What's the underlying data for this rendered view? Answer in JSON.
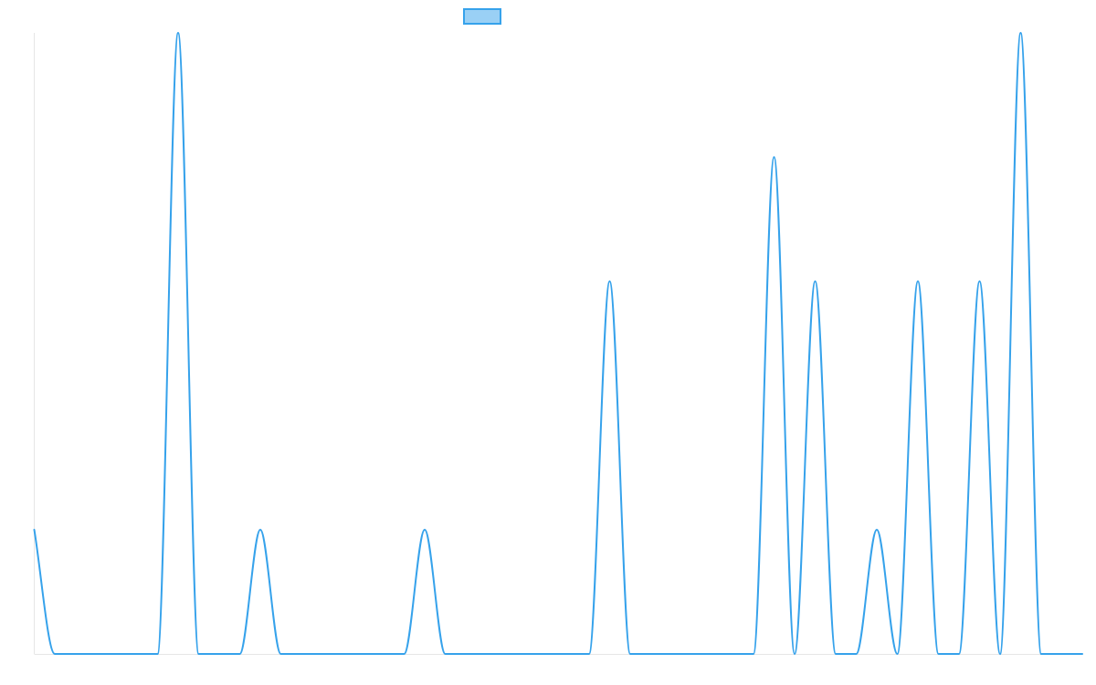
{
  "chart_data": {
    "type": "line",
    "title": "",
    "xlabel": "",
    "ylabel": "",
    "grid": false,
    "legend": "top-center",
    "x_range": [
      0,
      51
    ],
    "y_range": [
      0,
      5
    ],
    "series": [
      {
        "name": "",
        "color": "#36a2eb",
        "fill_color": "#9ad0f5",
        "values": [
          1,
          0,
          0,
          0,
          0,
          0,
          0,
          5,
          0,
          0,
          0,
          1,
          0,
          0,
          0,
          0,
          0,
          0,
          0,
          1,
          0,
          0,
          0,
          0,
          0,
          0,
          0,
          0,
          3,
          0,
          0,
          0,
          0,
          0,
          0,
          0,
          4,
          0,
          3,
          0,
          0,
          1,
          0,
          3,
          0,
          0,
          3,
          0,
          5,
          0,
          0,
          0
        ]
      }
    ]
  }
}
